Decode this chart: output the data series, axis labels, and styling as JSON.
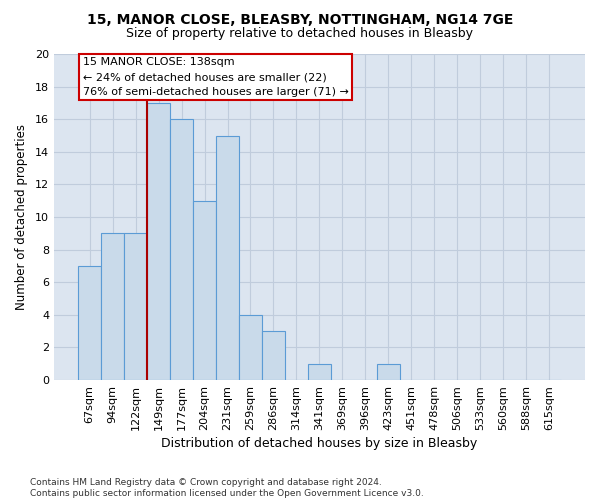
{
  "title1": "15, MANOR CLOSE, BLEASBY, NOTTINGHAM, NG14 7GE",
  "title2": "Size of property relative to detached houses in Bleasby",
  "xlabel": "Distribution of detached houses by size in Bleasby",
  "ylabel": "Number of detached properties",
  "categories": [
    "67sqm",
    "94sqm",
    "122sqm",
    "149sqm",
    "177sqm",
    "204sqm",
    "231sqm",
    "259sqm",
    "286sqm",
    "314sqm",
    "341sqm",
    "369sqm",
    "396sqm",
    "423sqm",
    "451sqm",
    "478sqm",
    "506sqm",
    "533sqm",
    "560sqm",
    "588sqm",
    "615sqm"
  ],
  "values": [
    7,
    9,
    9,
    17,
    16,
    11,
    15,
    4,
    3,
    0,
    1,
    0,
    0,
    1,
    0,
    0,
    0,
    0,
    0,
    0,
    0
  ],
  "bar_color": "#c9daea",
  "bar_edge_color": "#5b9bd5",
  "vline_x_index": 2.5,
  "vline_color": "#aa0000",
  "annotation_line1": "15 MANOR CLOSE: 138sqm",
  "annotation_line2": "← 24% of detached houses are smaller (22)",
  "annotation_line3": "76% of semi-detached houses are larger (71) →",
  "ylim": [
    0,
    20
  ],
  "yticks": [
    0,
    2,
    4,
    6,
    8,
    10,
    12,
    14,
    16,
    18,
    20
  ],
  "grid_color": "#c0ccdc",
  "background_color": "#dce5f0",
  "footnote_line1": "Contains HM Land Registry data © Crown copyright and database right 2024.",
  "footnote_line2": "Contains public sector information licensed under the Open Government Licence v3.0.",
  "title1_fontsize": 10,
  "title2_fontsize": 9,
  "xlabel_fontsize": 9,
  "ylabel_fontsize": 8.5,
  "tick_fontsize": 8,
  "annotation_fontsize": 8,
  "footnote_fontsize": 6.5
}
